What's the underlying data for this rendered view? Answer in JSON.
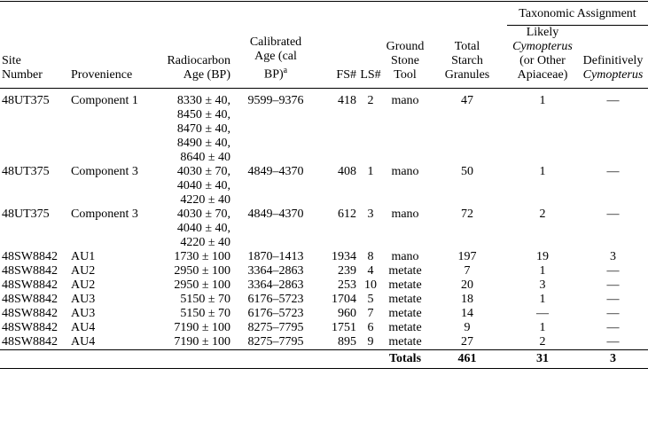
{
  "table": {
    "group_header": "Taxonomic Assignment",
    "columns": [
      {
        "lines": [
          "Site",
          "Number"
        ]
      },
      {
        "lines": [
          "Provenience"
        ]
      },
      {
        "lines": [
          "Radiocarbon",
          "Age (BP)"
        ]
      },
      {
        "lines": [
          "Calibrated",
          "Age (cal",
          "BP)"
        ],
        "note": "a"
      },
      {
        "lines": [
          "FS#"
        ]
      },
      {
        "lines": [
          "LS#"
        ]
      },
      {
        "lines": [
          "Ground",
          "Stone",
          "Tool"
        ]
      },
      {
        "lines": [
          "Total",
          "Starch",
          "Granules"
        ]
      },
      {
        "lines": [
          "Likely",
          "Cymopterus",
          "(or Other",
          "Apiaceae)"
        ]
      },
      {
        "lines": [
          "Definitively",
          "Cymopterus"
        ]
      }
    ],
    "rows": [
      [
        "48UT375",
        "Component 1",
        [
          "8330 ± 40,",
          "8450 ± 40,",
          "8470 ± 40,",
          "8490 ± 40,",
          "8640 ± 40"
        ],
        "9599–9376",
        "418",
        "2",
        "mano",
        "47",
        "1",
        "—"
      ],
      [
        "48UT375",
        "Component 3",
        [
          "4030 ± 70,",
          "4040 ± 40,",
          "4220 ± 40"
        ],
        "4849–4370",
        "408",
        "1",
        "mano",
        "50",
        "1",
        "—"
      ],
      [
        "48UT375",
        "Component 3",
        [
          "4030 ± 70,",
          "4040 ± 40,",
          "4220 ± 40"
        ],
        "4849–4370",
        "612",
        "3",
        "mano",
        "72",
        "2",
        "—"
      ],
      [
        "48SW8842",
        "AU1",
        [
          "1730 ± 100"
        ],
        "1870–1413",
        "1934",
        "8",
        "mano",
        "197",
        "19",
        "3"
      ],
      [
        "48SW8842",
        "AU2",
        [
          "2950 ± 100"
        ],
        "3364–2863",
        "239",
        "4",
        "metate",
        "7",
        "1",
        "—"
      ],
      [
        "48SW8842",
        "AU2",
        [
          "2950 ± 100"
        ],
        "3364–2863",
        "253",
        "10",
        "metate",
        "20",
        "3",
        "—"
      ],
      [
        "48SW8842",
        "AU3",
        [
          "5150 ± 70"
        ],
        "6176–5723",
        "1704",
        "5",
        "metate",
        "18",
        "1",
        "—"
      ],
      [
        "48SW8842",
        "AU3",
        [
          "5150 ± 70"
        ],
        "6176–5723",
        "960",
        "7",
        "metate",
        "14",
        "—",
        "—"
      ],
      [
        "48SW8842",
        "AU4",
        [
          "7190 ± 100"
        ],
        "8275–7795",
        "1751",
        "6",
        "metate",
        "9",
        "1",
        "—"
      ],
      [
        "48SW8842",
        "AU4",
        [
          "7190 ± 100"
        ],
        "8275–7795",
        "895",
        "9",
        "metate",
        "27",
        "2",
        "—"
      ]
    ],
    "totals": [
      "Totals",
      "461",
      "31",
      "3"
    ]
  }
}
